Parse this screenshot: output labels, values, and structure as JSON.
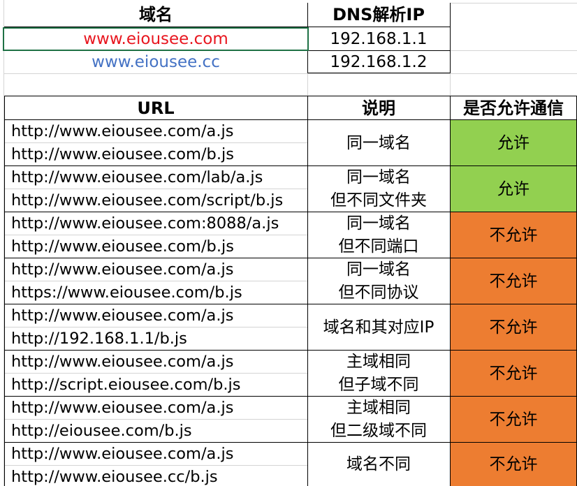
{
  "domain_table": {
    "headers": [
      "域名",
      "DNS解析IP"
    ],
    "rows": [
      {
        "domain": "www.eiousee.com",
        "ip": "192.168.1.1"
      },
      {
        "domain": "www.eiousee.cc",
        "ip": "192.168.1.2"
      }
    ]
  },
  "url_table": {
    "headers": [
      "URL",
      "说明",
      "是否允许通信"
    ],
    "rows": [
      {
        "urls": [
          "http://www.eiousee.com/a.js",
          "http://www.eiousee.com/b.js"
        ],
        "note": [
          "同一域名"
        ],
        "result": "允许",
        "status": "allow"
      },
      {
        "urls": [
          "http://www.eiousee.com/lab/a.js",
          "http://www.eiousee.com/script/b.js"
        ],
        "note": [
          "同一域名",
          "但不同文件夹"
        ],
        "result": "允许",
        "status": "allow"
      },
      {
        "urls": [
          "http://www.eiousee.com:8088/a.js",
          "http://www.eiousee.com/b.js"
        ],
        "note": [
          "同一域名",
          "但不同端口"
        ],
        "result": "不允许",
        "status": "deny"
      },
      {
        "urls": [
          "http://www.eiousee.com/a.js",
          "https://www.eiousee.com/b.js"
        ],
        "note": [
          "同一域名",
          "但不同协议"
        ],
        "result": "不允许",
        "status": "deny"
      },
      {
        "urls": [
          "http://www.eiousee.com/a.js",
          "http://192.168.1.1/b.js"
        ],
        "note": [
          "域名和其对应IP"
        ],
        "result": "不允许",
        "status": "deny"
      },
      {
        "urls": [
          "http://www.eiousee.com/a.js",
          "http://script.eiousee.com/b.js"
        ],
        "note": [
          "主域相同",
          "但子域不同"
        ],
        "result": "不允许",
        "status": "deny"
      },
      {
        "urls": [
          "http://www.eiousee.com/a.js",
          "http://eiousee.com/b.js"
        ],
        "note": [
          "主域相同",
          "但二级域不同"
        ],
        "result": "不允许",
        "status": "deny"
      },
      {
        "urls": [
          "http://www.eiousee.com/a.js",
          "http://www.eiousee.cc/b.js"
        ],
        "note": [
          "域名不同"
        ],
        "result": "不允许",
        "status": "deny"
      }
    ]
  },
  "colors": {
    "allow": "#92d050",
    "deny": "#ed7d31",
    "red_link": "#e8161f",
    "blue_link": "#4472c4",
    "selection": "#1e7145"
  }
}
